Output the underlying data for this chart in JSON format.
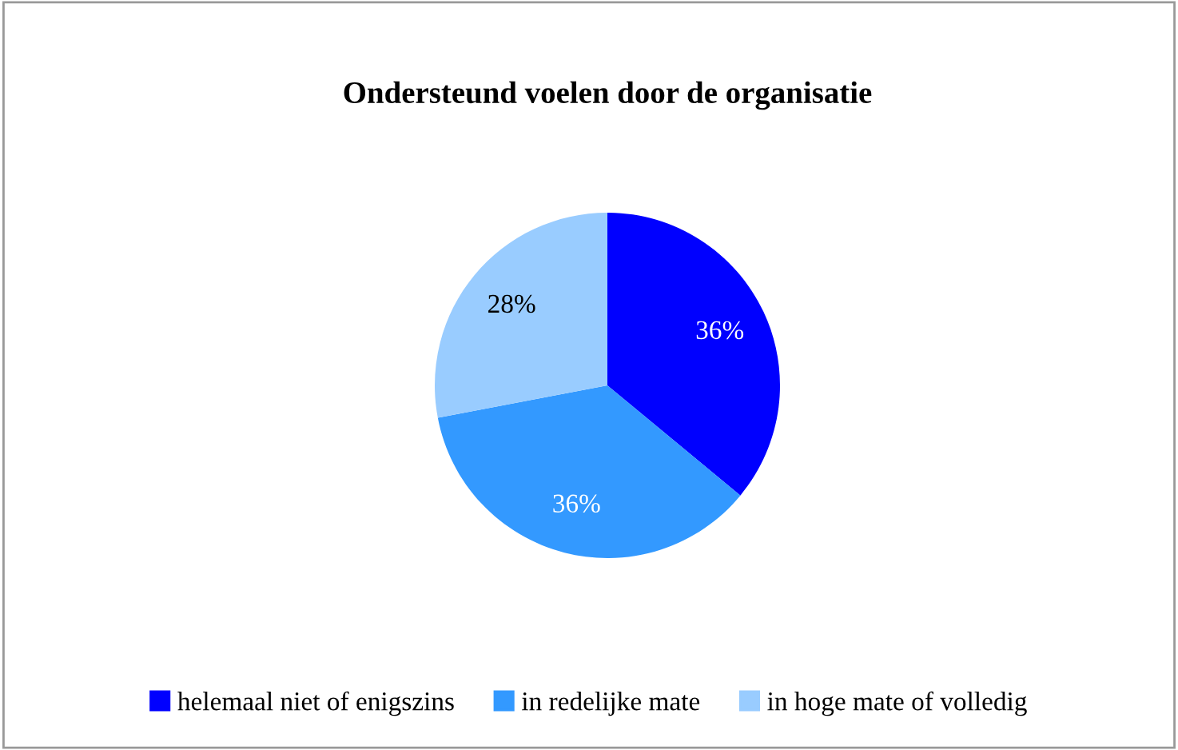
{
  "chart_data": {
    "type": "pie",
    "title": "Ondersteund voelen door de organisatie",
    "categories": [
      "helemaal niet of enigszins",
      "in redelijke mate",
      "in hoge mate of volledig"
    ],
    "values": [
      36,
      36,
      28
    ],
    "colors": [
      "#0000ff",
      "#3399ff",
      "#99ccff"
    ],
    "value_labels": [
      "36%",
      "36%",
      "28%"
    ],
    "legend": "bottom"
  }
}
